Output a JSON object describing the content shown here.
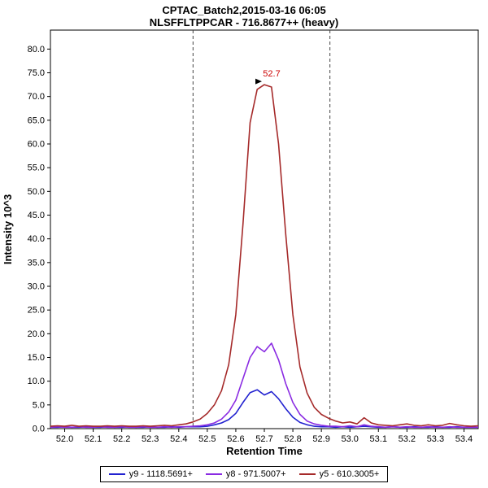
{
  "header": {
    "title_line1": "CPTAC_Batch2,2015-03-16 06:05",
    "title_line2": "NLSFFLTPPCAR - 716.8677++ (heavy)"
  },
  "chart_data": {
    "type": "line",
    "title": "CPTAC_Batch2,2015-03-16 06:05",
    "subtitle": "NLSFFLTPPCAR - 716.8677++ (heavy)",
    "xlabel": "Retention Time",
    "ylabel": "Intensity 10^3",
    "xlim": [
      51.95,
      53.45
    ],
    "ylim": [
      0,
      84
    ],
    "x_ticks": [
      52.0,
      52.1,
      52.2,
      52.3,
      52.4,
      52.5,
      52.6,
      52.7,
      52.8,
      52.9,
      53.0,
      53.1,
      53.2,
      53.3,
      53.4
    ],
    "y_ticks": [
      0,
      5,
      10,
      15,
      20,
      25,
      30,
      35,
      40,
      45,
      50,
      55,
      60,
      65,
      70,
      75,
      80
    ],
    "grid": false,
    "legend_position": "bottom",
    "integration_boundaries": [
      52.45,
      52.93
    ],
    "annotation": {
      "label": "52.7",
      "x": 52.7,
      "y": 72.5,
      "color": "#cc0000"
    },
    "x": [
      51.95,
      51.975,
      52.0,
      52.025,
      52.05,
      52.075,
      52.1,
      52.125,
      52.15,
      52.175,
      52.2,
      52.225,
      52.25,
      52.275,
      52.3,
      52.325,
      52.35,
      52.375,
      52.4,
      52.425,
      52.45,
      52.475,
      52.5,
      52.525,
      52.55,
      52.575,
      52.6,
      52.625,
      52.65,
      52.675,
      52.7,
      52.725,
      52.75,
      52.775,
      52.8,
      52.825,
      52.85,
      52.875,
      52.9,
      52.925,
      52.95,
      52.975,
      53.0,
      53.025,
      53.05,
      53.075,
      53.1,
      53.125,
      53.15,
      53.175,
      53.2,
      53.225,
      53.25,
      53.275,
      53.3,
      53.325,
      53.35,
      53.375,
      53.4,
      53.425,
      53.45
    ],
    "series": [
      {
        "name": "y9 - 1118.5691+",
        "color": "#2222d0",
        "values": [
          0.3,
          0.3,
          0.4,
          0.3,
          0.3,
          0.4,
          0.3,
          0.3,
          0.4,
          0.3,
          0.3,
          0.4,
          0.3,
          0.3,
          0.4,
          0.3,
          0.3,
          0.4,
          0.3,
          0.4,
          0.4,
          0.4,
          0.5,
          0.8,
          1.2,
          1.9,
          3.2,
          5.5,
          7.6,
          8.2,
          7.1,
          7.8,
          6.3,
          4.2,
          2.4,
          1.3,
          0.8,
          0.5,
          0.4,
          0.4,
          0.3,
          0.4,
          0.3,
          0.4,
          0.5,
          0.4,
          0.3,
          0.3,
          0.4,
          0.3,
          0.3,
          0.4,
          0.3,
          0.3,
          0.4,
          0.3,
          0.3,
          0.4,
          0.3,
          0.3,
          0.3
        ]
      },
      {
        "name": "y8 - 971.5007+",
        "color": "#8a2be2",
        "values": [
          0.3,
          0.4,
          0.3,
          0.3,
          0.4,
          0.3,
          0.3,
          0.4,
          0.3,
          0.3,
          0.4,
          0.3,
          0.3,
          0.4,
          0.3,
          0.3,
          0.4,
          0.3,
          0.4,
          0.4,
          0.5,
          0.6,
          0.8,
          1.2,
          2.0,
          3.5,
          6.0,
          10.5,
          15.0,
          17.3,
          16.2,
          18.0,
          14.5,
          9.5,
          5.5,
          3.0,
          1.6,
          1.0,
          0.7,
          0.5,
          0.5,
          0.4,
          0.6,
          0.4,
          0.8,
          0.5,
          0.4,
          0.3,
          0.4,
          0.3,
          0.4,
          0.3,
          0.3,
          0.4,
          0.3,
          0.3,
          0.4,
          0.3,
          0.3,
          0.3,
          0.3
        ]
      },
      {
        "name": "y5 - 610.3005+",
        "color": "#a52a2a",
        "values": [
          0.5,
          0.6,
          0.5,
          0.7,
          0.5,
          0.6,
          0.5,
          0.5,
          0.6,
          0.5,
          0.6,
          0.5,
          0.5,
          0.6,
          0.5,
          0.6,
          0.7,
          0.6,
          0.8,
          1.0,
          1.4,
          2.0,
          3.2,
          5.0,
          8.0,
          13.5,
          24.0,
          43.0,
          64.5,
          71.5,
          72.5,
          72.0,
          60.0,
          41.0,
          24.0,
          13.0,
          7.5,
          4.5,
          3.0,
          2.2,
          1.6,
          1.2,
          1.4,
          1.0,
          2.3,
          1.2,
          0.8,
          0.7,
          0.6,
          0.8,
          1.0,
          0.7,
          0.6,
          0.8,
          0.6,
          0.7,
          1.1,
          0.8,
          0.6,
          0.5,
          0.6
        ]
      }
    ]
  }
}
